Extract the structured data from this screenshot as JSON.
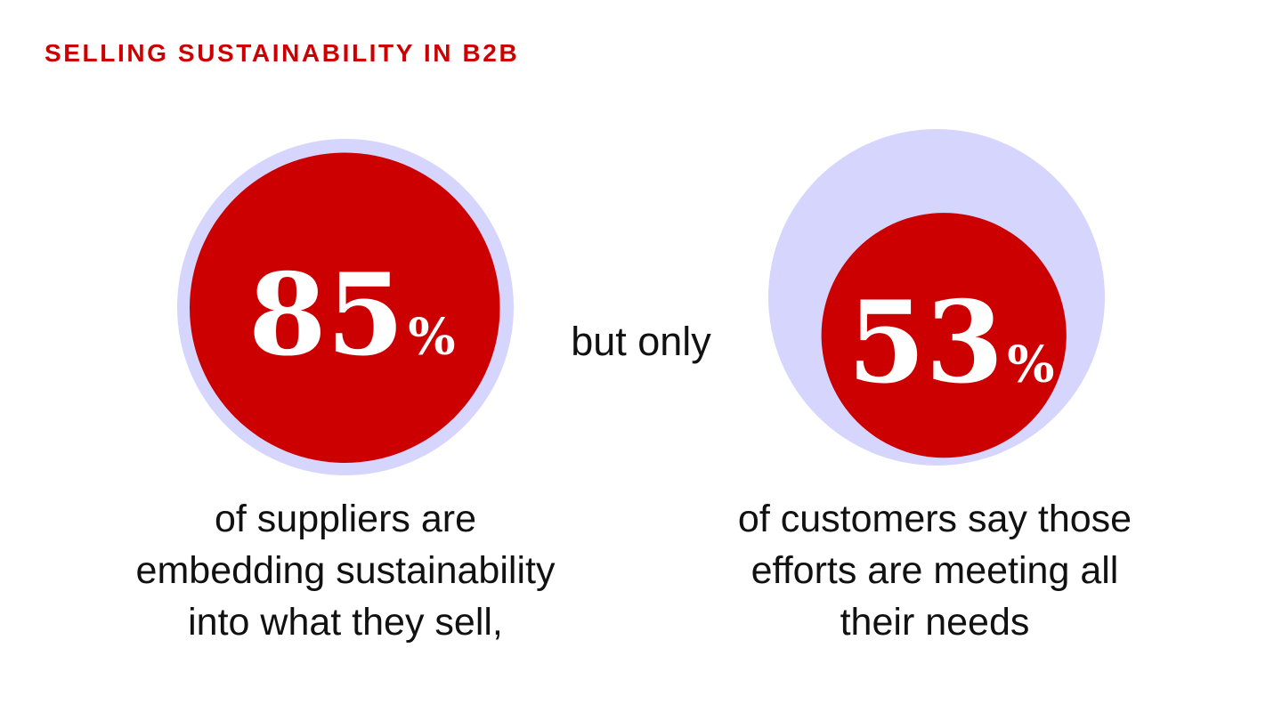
{
  "header": {
    "title": "SELLING SUSTAINABILITY IN B2B"
  },
  "colors": {
    "accent": "#cc0000",
    "backdrop": "#d5d5fd",
    "text": "#111111"
  },
  "connector": "but only",
  "chart_data": {
    "type": "bubble",
    "series": [
      {
        "value": 85,
        "value_label": "85",
        "unit": "%",
        "caption_lines": [
          "of suppliers are",
          "embedding sustainability",
          "into what they sell,"
        ]
      },
      {
        "value": 53,
        "value_label": "53",
        "unit": "%",
        "caption_lines": [
          "of customers say those",
          "efforts are meeting all",
          "their needs"
        ]
      }
    ]
  }
}
